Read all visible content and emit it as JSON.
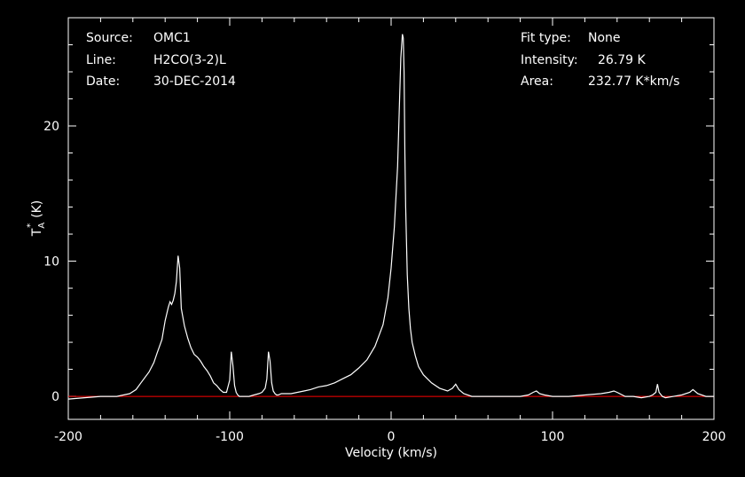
{
  "header": {
    "left": [
      {
        "label": "Source:",
        "value": "OMC1"
      },
      {
        "label": "Line:",
        "value": "H2CO(3-2)L"
      },
      {
        "label": "Date:",
        "value": "30-DEC-2014"
      }
    ],
    "right": [
      {
        "label": "Fit type:",
        "value": "None"
      },
      {
        "label": "Intensity:",
        "value": "26.79 K"
      },
      {
        "label": "Area:",
        "value": "232.77 K*km/s"
      }
    ]
  },
  "colors": {
    "background": "#000000",
    "axes": "#ffffff",
    "spectrum": "#ffffff",
    "baseline": "#ff0000"
  },
  "chart_data": {
    "type": "line",
    "xlabel": "Velocity (km/s)",
    "ylabel_main": "T",
    "ylabel_sub": "A",
    "ylabel_sup": "*",
    "ylabel_unit": "(K)",
    "xlim": [
      -200,
      200
    ],
    "ylim": [
      -1.7,
      28
    ],
    "xticks": [
      -200,
      -100,
      0,
      100,
      200
    ],
    "yticks": [
      0,
      10,
      20
    ],
    "xtick_labels": [
      "-200",
      "-100",
      "0",
      "100",
      "200"
    ],
    "ytick_labels": [
      "0",
      "10",
      "20"
    ],
    "baseline_y": 0,
    "series": [
      {
        "x": [
          -200,
          -190,
          -180,
          -170,
          -162,
          -158,
          -155,
          -150,
          -147,
          -145,
          -142,
          -140,
          -138,
          -137,
          -136,
          -135,
          -134,
          -133,
          -132,
          -131,
          -130,
          -128,
          -126,
          -124,
          -122,
          -120,
          -118,
          -116,
          -114,
          -112,
          -110,
          -108,
          -106,
          -104,
          -102,
          -100,
          -99,
          -98,
          -97,
          -96,
          -95,
          -94,
          -92,
          -90,
          -88,
          -85,
          -82,
          -80,
          -78,
          -77,
          -76,
          -75,
          -74,
          -73,
          -72,
          -71,
          -70,
          -68,
          -66,
          -62,
          -58,
          -54,
          -50,
          -45,
          -40,
          -35,
          -30,
          -25,
          -20,
          -15,
          -10,
          -5,
          -2,
          0,
          2,
          4,
          5,
          6,
          7,
          7.5,
          8,
          8.5,
          9,
          10,
          11,
          12,
          13,
          15,
          17,
          20,
          25,
          30,
          35,
          38,
          40,
          42,
          45,
          50,
          60,
          70,
          80,
          85,
          88,
          90,
          92,
          95,
          100,
          110,
          120,
          130,
          135,
          138,
          140,
          145,
          150,
          155,
          160,
          162,
          164,
          165,
          166,
          168,
          170,
          180,
          185,
          187,
          190,
          195,
          200
        ],
        "y": [
          -0.2,
          -0.1,
          0,
          0,
          0.2,
          0.5,
          1,
          1.8,
          2.5,
          3.2,
          4.2,
          5.6,
          6.6,
          7,
          6.8,
          7.1,
          7.6,
          8.5,
          10.4,
          9.5,
          6.5,
          5.2,
          4.3,
          3.6,
          3.1,
          2.9,
          2.6,
          2.2,
          1.9,
          1.5,
          1.0,
          0.8,
          0.5,
          0.3,
          0.3,
          1.2,
          3.3,
          2.3,
          0.8,
          0.3,
          0.1,
          0,
          0,
          0,
          0,
          0.1,
          0.2,
          0.3,
          0.6,
          1.3,
          3.3,
          2.6,
          1.0,
          0.4,
          0.2,
          0.1,
          0.1,
          0.2,
          0.2,
          0.2,
          0.3,
          0.4,
          0.5,
          0.7,
          0.8,
          1.0,
          1.3,
          1.6,
          2.1,
          2.7,
          3.7,
          5.3,
          7.3,
          9.5,
          12.5,
          17,
          21,
          25,
          26.79,
          26.5,
          24,
          18,
          14,
          9,
          6.5,
          5,
          4,
          3,
          2.2,
          1.6,
          1.0,
          0.6,
          0.4,
          0.6,
          0.9,
          0.5,
          0.2,
          0,
          0,
          0,
          0,
          0.1,
          0.3,
          0.4,
          0.2,
          0.1,
          0,
          0,
          0.1,
          0.2,
          0.3,
          0.4,
          0.3,
          0,
          0,
          -0.1,
          0,
          0.1,
          0.3,
          0.9,
          0.3,
          0,
          -0.1,
          0.1,
          0.3,
          0.5,
          0.2,
          0,
          0
        ]
      }
    ]
  }
}
